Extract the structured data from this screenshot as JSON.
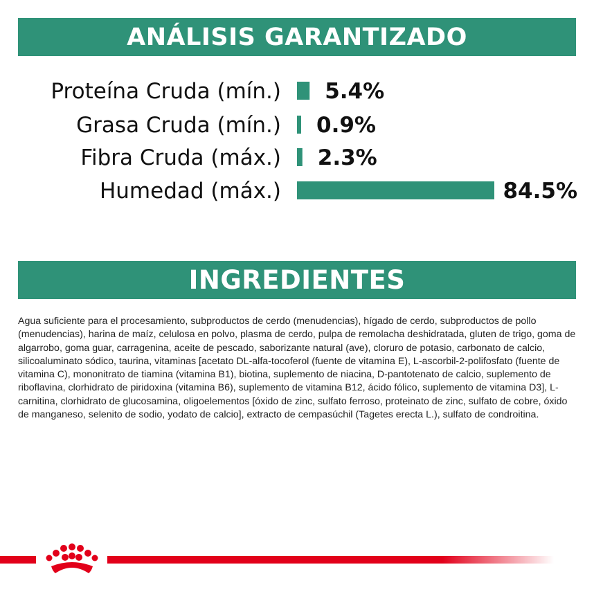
{
  "analysis": {
    "title": "ANÁLISIS GARANTIZADO"
  },
  "ingredients": {
    "title": "INGREDIENTES",
    "text": "Agua suficiente para el procesamiento, subproductos de cerdo (menudencias), hígado de cerdo, subproductos de pollo (menudencias), harina de maíz, celulosa en polvo, plasma de cerdo, pulpa de remolacha deshidratada, gluten de trigo, goma de algarrobo, goma guar, carragenina, aceite de pescado, saborizante natural (ave), cloruro de potasio, carbonato de calcio, silicoaluminato sódico, taurina, vitaminas [acetato DL-alfa-tocoferol (fuente de vitamina E), L-ascorbil-2-polifosfato (fuente de vitamina C), mononitrato de tiamina (vitamina B1), biotina, suplemento de niacina, D-pantotenato de calcio, suplemento de riboflavina, clorhidrato de piridoxina (vitamina B6), suplemento de vitamina B12, ácido fólico, suplemento de vitamina D3], L-carnitina, clorhidrato de glucosamina, oligoelementos [óxido de zinc, sulfato ferroso, proteinato de zinc, sulfato de cobre, óxido de manganeso, selenito de sodio, yodato de calcio], extracto de cempasúchil (Tagetes erecta L.), sulfato de condroitina."
  },
  "chart_data": {
    "type": "bar",
    "orientation": "horizontal",
    "categories": [
      "Proteína Cruda (mín.)",
      "Grasa Cruda (mín.)",
      "Fibra Cruda (máx.)",
      "Humedad (máx.)"
    ],
    "values": [
      5.4,
      0.9,
      2.3,
      84.5
    ],
    "value_labels": [
      "5.4%",
      "0.9%",
      "2.3%",
      "84.5%"
    ],
    "title": "",
    "xlabel": "",
    "ylabel": "",
    "xlim": [
      0,
      84.5
    ],
    "grid": false,
    "legend": "none",
    "bar_color": "#2f9278"
  },
  "colors": {
    "accent": "#2f9278",
    "brand_red": "#e2001a"
  },
  "footer": {
    "logo_icon": "royal-canin-crown-icon"
  }
}
